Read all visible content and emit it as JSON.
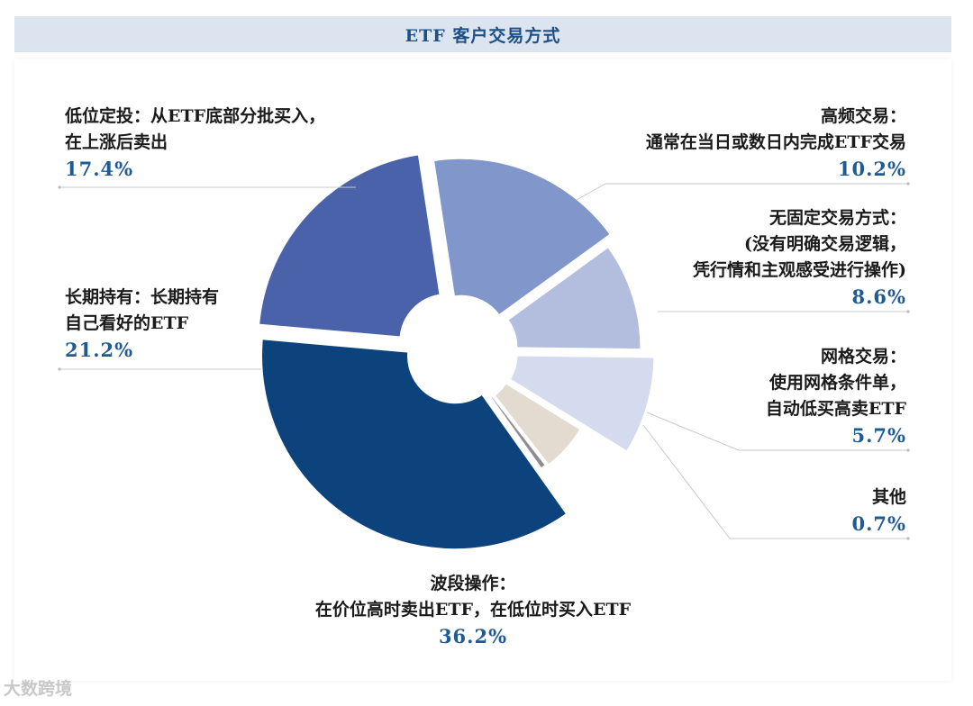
{
  "title": "ETF 客户交易方式",
  "chart_data": {
    "type": "pie",
    "donut": true,
    "exploded": true,
    "title": "ETF 客户交易方式",
    "slices": [
      {
        "name": "高频交易：",
        "desc": "通常在当日或数日内完成ETF交易",
        "value": 10.2,
        "pct": "10.2%",
        "color": "#b3bedf"
      },
      {
        "name": "无固定交易方式：",
        "desc": "(没有明确交易逻辑，",
        "desc2": "凭行情和主观感受进行操作)",
        "value": 8.6,
        "pct": "8.6%",
        "color": "#d5dbee"
      },
      {
        "name": "网格交易：",
        "desc": "使用网格条件单，",
        "desc2": "自动低买高卖ETF",
        "value": 5.7,
        "pct": "5.7%",
        "color": "#e3dbd0"
      },
      {
        "name": "其他",
        "desc": "",
        "value": 0.7,
        "pct": "0.7%",
        "color": "#8e8e8e"
      },
      {
        "name": "波段操作：",
        "desc": "在价位高时卖出ETF，在低位时买入ETF",
        "value": 36.2,
        "pct": "36.2%",
        "color": "#0d437d"
      },
      {
        "name": "长期持有：长期持有",
        "desc": "自己看好的ETF",
        "value": 21.2,
        "pct": "21.2%",
        "color": "#4a62a9"
      },
      {
        "name": "低位定投：从ETF底部分批买入，",
        "desc": "在上涨后卖出",
        "value": 17.4,
        "pct": "17.4%",
        "color": "#8196ca"
      }
    ]
  },
  "watermark": "大数跨境"
}
